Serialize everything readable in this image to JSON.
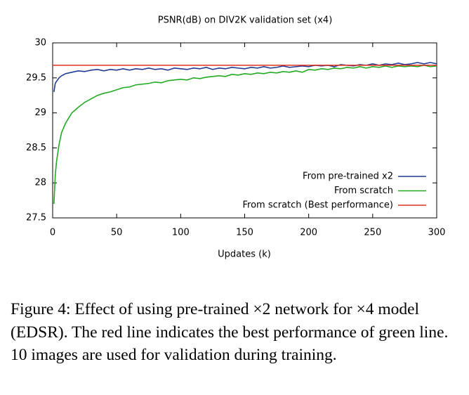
{
  "chart_data": {
    "type": "line",
    "title": "PSNR(dB) on DIV2K validation set (x4)",
    "x_label": "Updates (k)",
    "xlim": [
      0,
      300
    ],
    "xticks": [
      0,
      50,
      100,
      150,
      200,
      250,
      300
    ],
    "ylim": [
      27.5,
      30
    ],
    "yticks": [
      27.5,
      28,
      28.5,
      29,
      29.5,
      30
    ],
    "grid": false,
    "legend": "lower right",
    "series": [
      {
        "name": "From pre-trained x2",
        "color": "#1f3a93",
        "x": [
          1,
          2,
          3,
          5,
          7,
          10,
          15,
          20,
          25,
          30,
          35,
          40,
          45,
          50,
          55,
          60,
          65,
          70,
          75,
          80,
          85,
          90,
          95,
          100,
          105,
          110,
          115,
          120,
          125,
          130,
          135,
          140,
          145,
          150,
          155,
          160,
          165,
          170,
          175,
          180,
          185,
          190,
          195,
          200,
          205,
          210,
          215,
          220,
          225,
          230,
          235,
          240,
          245,
          250,
          255,
          260,
          265,
          270,
          275,
          280,
          285,
          290,
          295,
          300
        ],
        "values": [
          29.3,
          29.42,
          29.45,
          29.5,
          29.53,
          29.56,
          29.58,
          29.6,
          29.59,
          29.61,
          29.62,
          29.6,
          29.62,
          29.61,
          29.63,
          29.61,
          29.63,
          29.62,
          29.64,
          29.62,
          29.63,
          29.61,
          29.64,
          29.63,
          29.62,
          29.64,
          29.63,
          29.65,
          29.62,
          29.64,
          29.63,
          29.65,
          29.64,
          29.63,
          29.65,
          29.64,
          29.66,
          29.64,
          29.65,
          29.67,
          29.65,
          29.66,
          29.67,
          29.66,
          29.68,
          29.67,
          29.68,
          29.66,
          29.69,
          29.68,
          29.67,
          29.69,
          29.68,
          29.7,
          29.68,
          29.7,
          29.69,
          29.71,
          29.69,
          29.7,
          29.72,
          29.7,
          29.72,
          29.7
        ]
      },
      {
        "name": "From scratch",
        "color": "#22aa22",
        "x": [
          1,
          2,
          3,
          5,
          7,
          10,
          15,
          20,
          25,
          30,
          35,
          40,
          45,
          50,
          55,
          60,
          65,
          70,
          75,
          80,
          85,
          90,
          95,
          100,
          105,
          110,
          115,
          120,
          125,
          130,
          135,
          140,
          145,
          150,
          155,
          160,
          165,
          170,
          175,
          180,
          185,
          190,
          195,
          200,
          205,
          210,
          215,
          220,
          225,
          230,
          235,
          240,
          245,
          250,
          255,
          260,
          265,
          270,
          275,
          280,
          285,
          290,
          295,
          300
        ],
        "values": [
          27.7,
          28.1,
          28.3,
          28.55,
          28.72,
          28.85,
          29.0,
          29.08,
          29.15,
          29.2,
          29.25,
          29.28,
          29.3,
          29.33,
          29.36,
          29.37,
          29.4,
          29.41,
          29.42,
          29.44,
          29.43,
          29.46,
          29.47,
          29.48,
          29.47,
          29.5,
          29.49,
          29.51,
          29.52,
          29.53,
          29.52,
          29.55,
          29.54,
          29.56,
          29.55,
          29.57,
          29.56,
          29.58,
          29.57,
          29.59,
          29.58,
          29.6,
          29.58,
          29.62,
          29.61,
          29.63,
          29.62,
          29.64,
          29.63,
          29.65,
          29.64,
          29.66,
          29.64,
          29.66,
          29.65,
          29.67,
          29.65,
          29.67,
          29.66,
          29.67,
          29.66,
          29.68,
          29.66,
          29.67
        ]
      },
      {
        "name": "From scratch (Best performance)",
        "color": "#e03020",
        "x": [
          0,
          300
        ],
        "values": [
          29.68,
          29.68
        ]
      }
    ]
  },
  "caption": "Figure 4: Effect of using pre-trained ×2 network for ×4 model (EDSR). The red line indicates the best performance of green line. 10 images are used for validation during training."
}
